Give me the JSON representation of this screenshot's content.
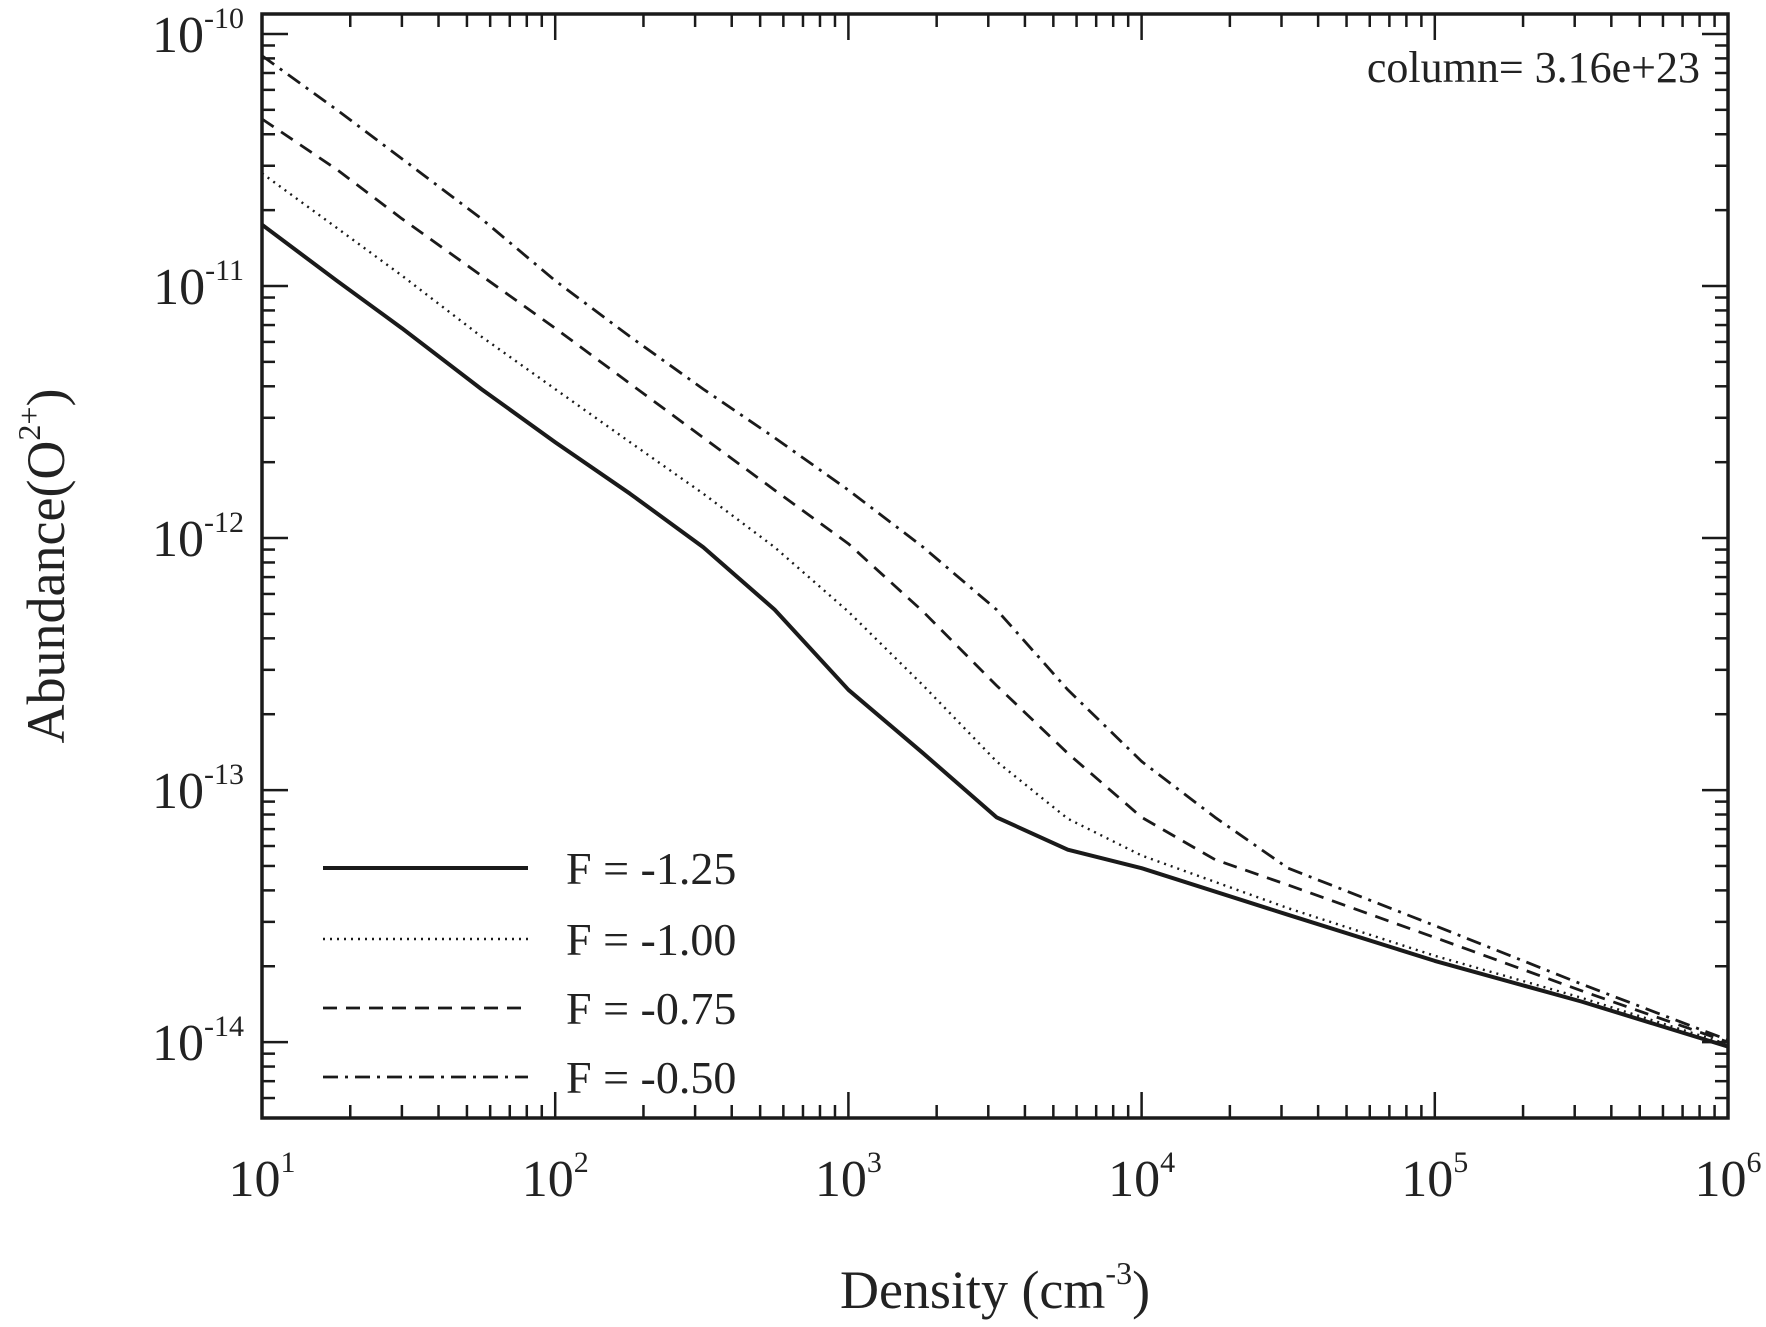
{
  "chart_data": {
    "type": "line",
    "xscale": "log",
    "yscale": "log",
    "xlim": [
      10,
      1000000
    ],
    "ylim": [
      5e-15,
      1.2e-10
    ],
    "grid": false,
    "xlabel": {
      "text": "Density (cm",
      "sup": "-3",
      "close": ")"
    },
    "ylabel": {
      "text": "Abundance(O",
      "sup": "2+",
      "close": ")"
    },
    "annotation": "column= 3.16e+23",
    "legend_position": "bottom-left",
    "x_ticks": [
      {
        "value": 10,
        "base": "10",
        "exp": "1"
      },
      {
        "value": 100,
        "base": "10",
        "exp": "2"
      },
      {
        "value": 1000,
        "base": "10",
        "exp": "3"
      },
      {
        "value": 10000,
        "base": "10",
        "exp": "4"
      },
      {
        "value": 100000,
        "base": "10",
        "exp": "5"
      },
      {
        "value": 1000000,
        "base": "10",
        "exp": "6"
      }
    ],
    "y_ticks": [
      {
        "value": 1e-14,
        "base": "10",
        "exp": "-14"
      },
      {
        "value": 1e-13,
        "base": "10",
        "exp": "-13"
      },
      {
        "value": 1e-12,
        "base": "10",
        "exp": "-12"
      },
      {
        "value": 1e-11,
        "base": "10",
        "exp": "-11"
      },
      {
        "value": 1e-10,
        "base": "10",
        "exp": "-10"
      }
    ],
    "series": [
      {
        "name": "F = -1.25",
        "dash": "solid",
        "x": [
          10,
          18,
          30,
          56,
          100,
          180,
          320,
          560,
          1000,
          1800,
          3200,
          5600,
          10000,
          31600,
          100000,
          316000,
          1000000
        ],
        "y": [
          1.75e-11,
          1.05e-11,
          6.8e-12,
          3.9e-12,
          2.4e-12,
          1.5e-12,
          9.2e-13,
          5.2e-13,
          2.5e-13,
          1.4e-13,
          7.8e-14,
          5.8e-14,
          4.9e-14,
          3.2e-14,
          2.1e-14,
          1.45e-14,
          9.6e-15
        ]
      },
      {
        "name": "F = -1.00",
        "dash": "dotted",
        "x": [
          10,
          18,
          30,
          56,
          100,
          180,
          320,
          560,
          1000,
          1800,
          3200,
          5600,
          10000,
          31600,
          100000,
          316000,
          1000000
        ],
        "y": [
          2.8e-11,
          1.7e-11,
          1.1e-11,
          6.3e-12,
          3.9e-12,
          2.4e-12,
          1.5e-12,
          9.2e-13,
          5.1e-13,
          2.6e-13,
          1.3e-13,
          7.7e-14,
          5.5e-14,
          3.4e-14,
          2.2e-14,
          1.5e-14,
          9.8e-15
        ]
      },
      {
        "name": "F = -0.75",
        "dash": "dashed",
        "x": [
          10,
          18,
          30,
          56,
          100,
          180,
          320,
          560,
          1000,
          1800,
          3200,
          5600,
          10000,
          17800,
          31600,
          100000,
          316000,
          1000000
        ],
        "y": [
          4.6e-11,
          2.9e-11,
          1.85e-11,
          1.1e-11,
          6.8e-12,
          4.1e-12,
          2.5e-12,
          1.55e-12,
          9.5e-13,
          5.1e-13,
          2.6e-13,
          1.4e-13,
          7.8e-14,
          5.3e-14,
          4.2e-14,
          2.6e-14,
          1.6e-14,
          1e-14
        ]
      },
      {
        "name": "F = -0.50",
        "dash": "dashdot",
        "x": [
          10,
          18,
          30,
          56,
          100,
          180,
          320,
          560,
          1000,
          1800,
          3200,
          5600,
          10000,
          17800,
          31600,
          100000,
          316000,
          1000000
        ],
        "y": [
          8.2e-11,
          5e-11,
          3.2e-11,
          1.85e-11,
          1.05e-11,
          6.3e-12,
          3.9e-12,
          2.5e-12,
          1.55e-12,
          9.2e-13,
          5.2e-13,
          2.5e-13,
          1.3e-13,
          7.8e-14,
          4.9e-14,
          2.9e-14,
          1.7e-14,
          1.02e-14
        ]
      }
    ]
  }
}
